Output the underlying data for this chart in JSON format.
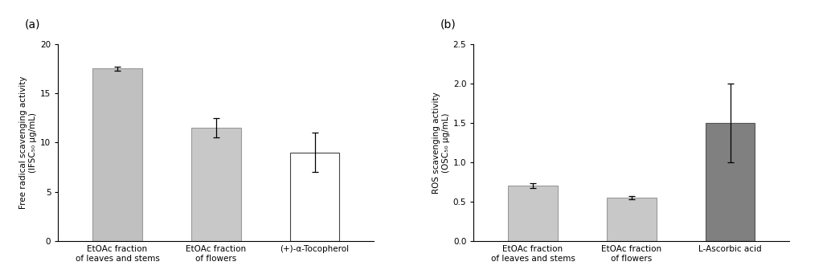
{
  "a_categories": [
    "EtOAc fraction\nof leaves and stems",
    "EtOAc fraction\nof flowers",
    "(+)-α-Tocopherol"
  ],
  "a_values": [
    17.5,
    11.5,
    9.0
  ],
  "a_errors": [
    0.2,
    1.0,
    2.0
  ],
  "a_colors": [
    "#c0c0c0",
    "#c8c8c8",
    "#ffffff"
  ],
  "a_edge_colors": [
    "#999999",
    "#999999",
    "#555555"
  ],
  "a_ylabel": "Free radical scavenging activity\n(IFSC₅₀ μg/mL)",
  "a_ylim": [
    0,
    20
  ],
  "a_yticks": [
    0,
    5,
    10,
    15,
    20
  ],
  "a_label": "(a)",
  "b_categories": [
    "EtOAc fraction\nof leaves and stems",
    "EtOAc fraction\nof flowers",
    "L-Ascorbic acid"
  ],
  "b_values": [
    0.7,
    0.55,
    1.5
  ],
  "b_errors": [
    0.03,
    0.02,
    0.5
  ],
  "b_colors": [
    "#c8c8c8",
    "#c8c8c8",
    "#808080"
  ],
  "b_edge_colors": [
    "#999999",
    "#999999",
    "#666666"
  ],
  "b_ylabel": "ROS scavenging activity\n(OSC₅₀ μg/mL)",
  "b_ylim": [
    0,
    2.5
  ],
  "b_yticks": [
    0,
    0.5,
    1.0,
    1.5,
    2.0,
    2.5
  ],
  "b_label": "(b)"
}
